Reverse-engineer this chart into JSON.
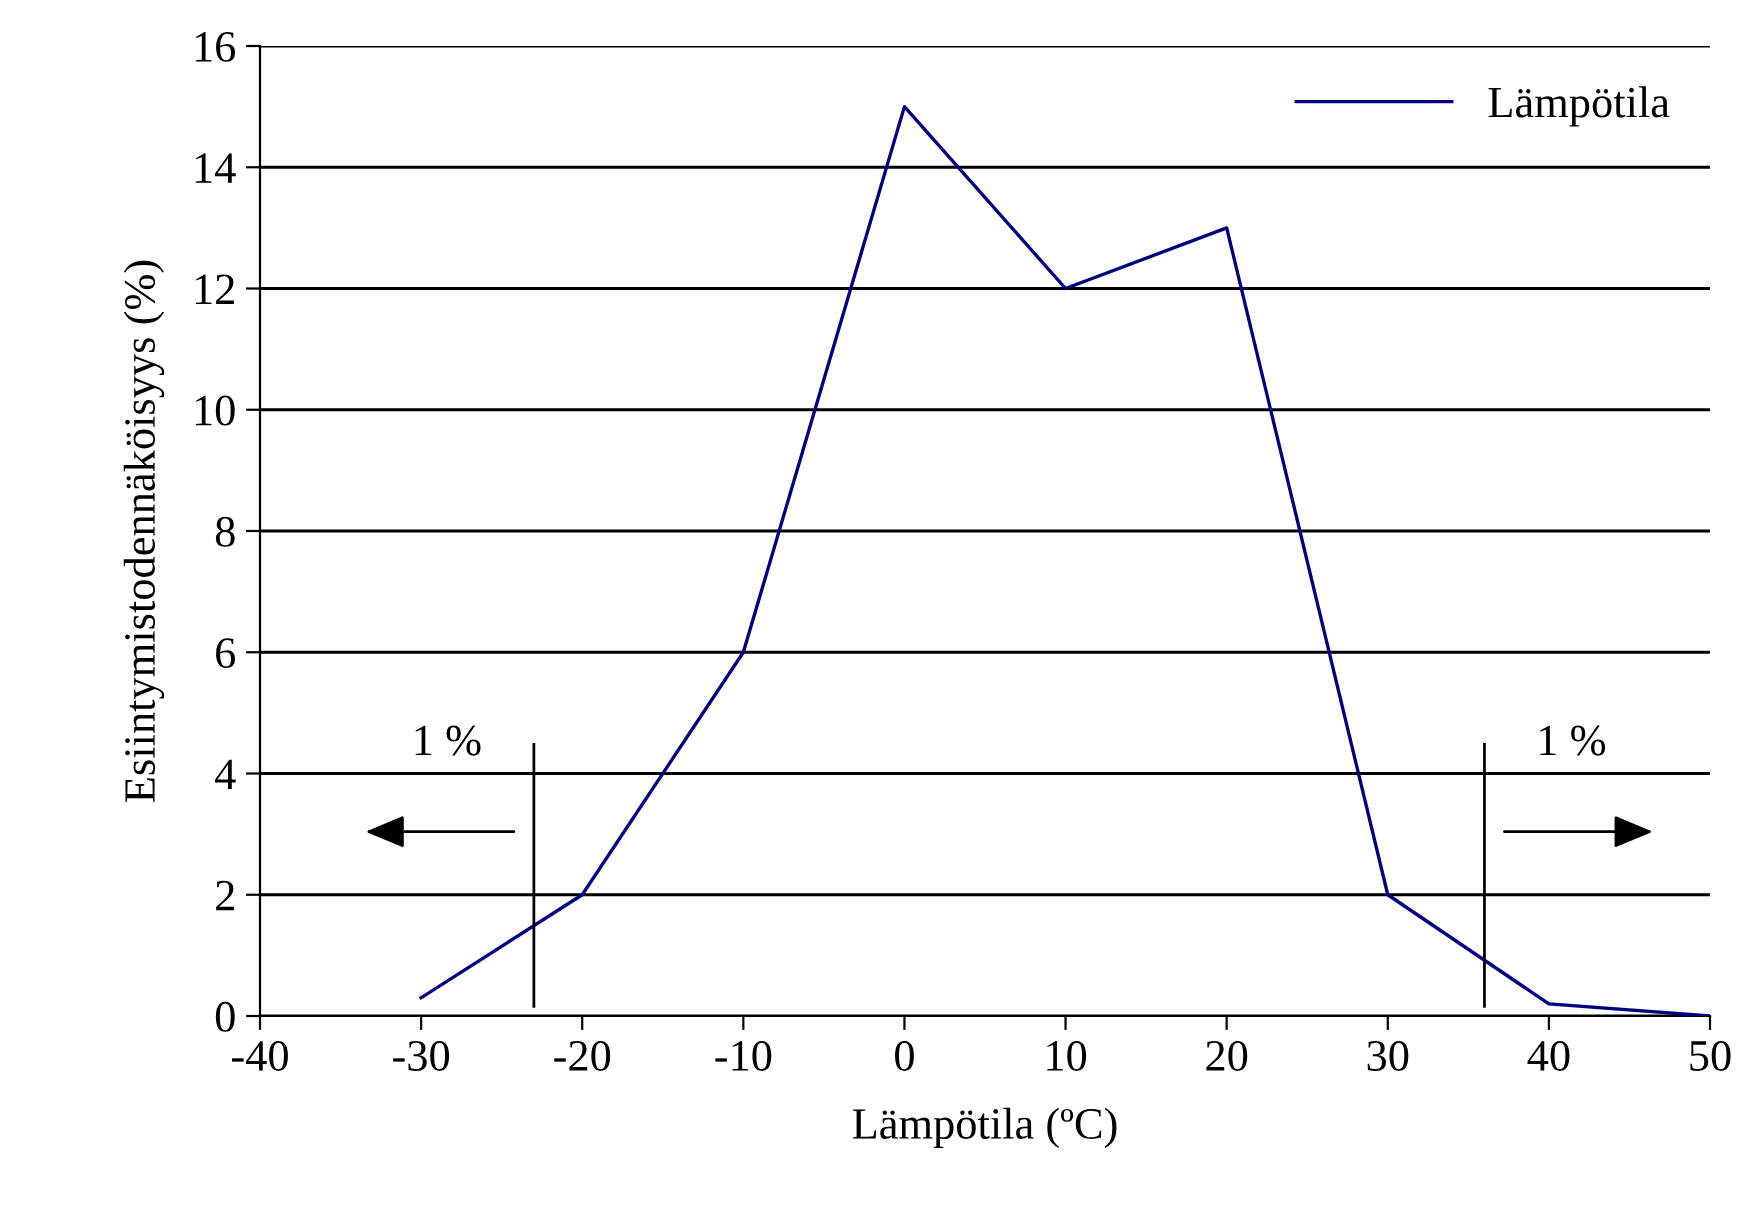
{
  "chart_data": {
    "type": "line",
    "xlabel": "Lämpötila (ºC)",
    "ylabel": "Esiintymistodennäköisyys (%)",
    "x": [
      -30,
      -20,
      -10,
      0,
      10,
      20,
      30,
      40,
      50
    ],
    "series": [
      {
        "name": "Lämpötila",
        "color": "#000080",
        "values": [
          0.3,
          2,
          6,
          15,
          12,
          13,
          2,
          0.2,
          0
        ]
      }
    ],
    "xlim": [
      -40,
      50
    ],
    "xticks": [
      -40,
      -30,
      -20,
      -10,
      0,
      10,
      20,
      30,
      40,
      50
    ],
    "ylim": [
      0,
      16
    ],
    "yticks": [
      0,
      2,
      4,
      6,
      8,
      10,
      12,
      14,
      16
    ],
    "ref_lines": [
      {
        "axis": "x",
        "value": -23,
        "color": "#000000"
      },
      {
        "axis": "x",
        "value": 36,
        "color": "#000000"
      }
    ],
    "annotations": [
      "1 %",
      "1 %"
    ],
    "grid": "y",
    "legend": "top right",
    "marker": "none",
    "line_style": "solid"
  }
}
